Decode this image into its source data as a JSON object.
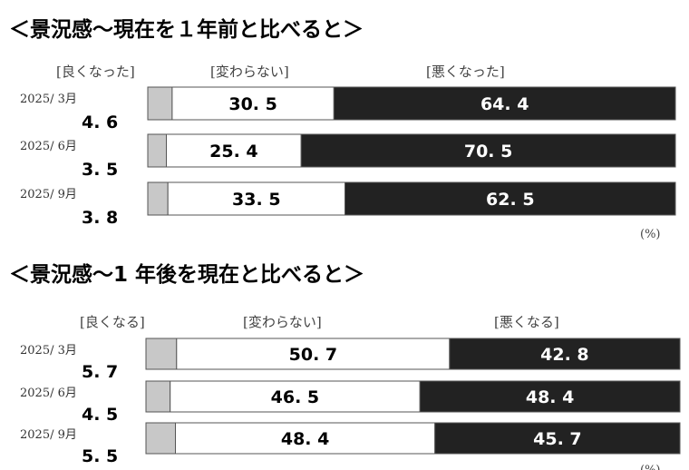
{
  "chart_data": [
    {
      "type": "bar",
      "stacked": true,
      "orientation": "horizontal",
      "title": "＜景況感～現在を１年前と比べると＞",
      "legend": [
        "[良くなった]",
        "[変わらない]",
        "[悪くなった]"
      ],
      "categories": [
        "2025/ 3月",
        "2025/ 6月",
        "2025/ 9月"
      ],
      "series": [
        {
          "name": "[良くなった]",
          "values": [
            4.6,
            3.5,
            3.8
          ],
          "color": "#c8c8c8"
        },
        {
          "name": "[変わらない]",
          "values": [
            30.5,
            25.4,
            33.5
          ],
          "color": "#ffffff"
        },
        {
          "name": "[悪くなった]",
          "values": [
            64.4,
            70.5,
            62.5
          ],
          "color": "#222222"
        }
      ],
      "labels": {
        "good": [
          "4. 6",
          "3. 5",
          "3. 8"
        ],
        "same": [
          "30. 5",
          "25. 4",
          "33. 5"
        ],
        "bad": [
          "64. 4",
          "70. 5",
          "62. 5"
        ]
      },
      "unit": "(%)"
    },
    {
      "type": "bar",
      "stacked": true,
      "orientation": "horizontal",
      "title": "＜景況感～1 年後を現在と比べると＞",
      "legend": [
        "[良くなる]",
        "[変わらない]",
        "[悪くなる]"
      ],
      "categories": [
        "2025/ 3月",
        "2025/ 6月",
        "2025/ 9月"
      ],
      "series": [
        {
          "name": "[良くなる]",
          "values": [
            5.7,
            4.5,
            5.5
          ],
          "color": "#c8c8c8"
        },
        {
          "name": "[変わらない]",
          "values": [
            50.7,
            46.5,
            48.4
          ],
          "color": "#ffffff"
        },
        {
          "name": "[悪くなる]",
          "values": [
            42.8,
            48.4,
            45.7
          ],
          "color": "#222222"
        }
      ],
      "labels": {
        "good": [
          "5. 7",
          "4. 5",
          "5. 5"
        ],
        "same": [
          "50. 7",
          "46. 5",
          "48. 4"
        ],
        "bad": [
          "42. 8",
          "48. 4",
          "45. 7"
        ]
      },
      "unit": "(%)"
    }
  ]
}
